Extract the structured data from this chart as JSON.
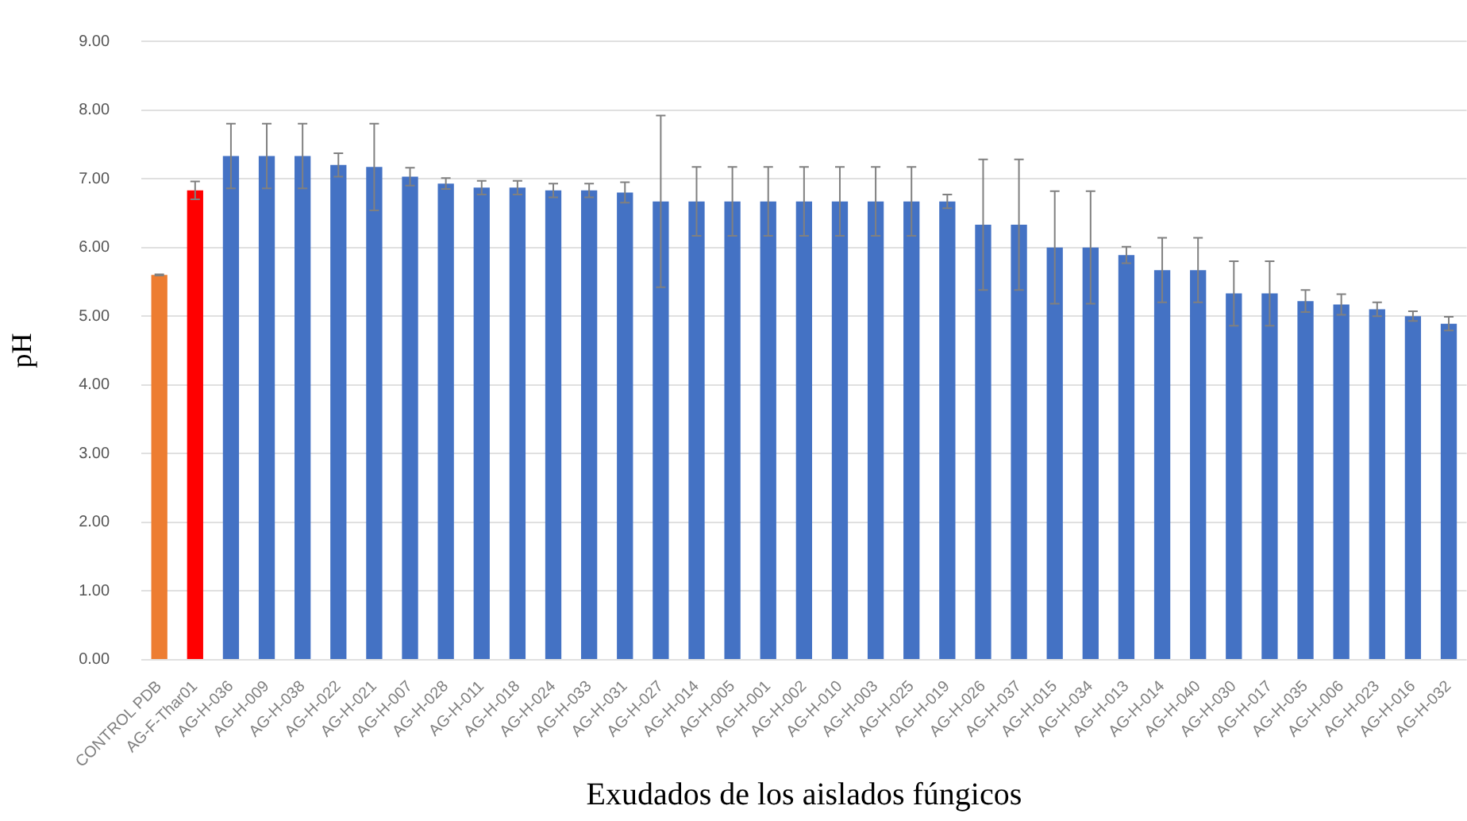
{
  "chart_data": {
    "type": "bar",
    "xlabel": "Exudados de los aislados fúngicos",
    "ylabel": "pH",
    "categories": [
      "CONTROL PDB",
      "AG-F-Thar01",
      "AG-H-036",
      "AG-H-009",
      "AG-H-038",
      "AG-H-022",
      "AG-H-021",
      "AG-H-007",
      "AG-H-028",
      "AG-H-011",
      "AG-H-018",
      "AG-H-024",
      "AG-H-033",
      "AG-H-031",
      "AG-H-027",
      "AG-H-014",
      "AG-H-005",
      "AG-H-001",
      "AG-H-002",
      "AG-H-010",
      "AG-H-003",
      "AG-H-025",
      "AG-H-019",
      "AG-H-026",
      "AG-H-037",
      "AG-H-015",
      "AG-H-034",
      "AG-H-013",
      "AG-H-014",
      "AG-H-040",
      "AG-H-030",
      "AG-H-017",
      "AG-H-035",
      "AG-H-006",
      "AG-H-023",
      "AG-H-016",
      "AG-H-032"
    ],
    "values": [
      5.6,
      6.83,
      7.33,
      7.33,
      7.33,
      7.2,
      7.17,
      7.03,
      6.93,
      6.87,
      6.87,
      6.83,
      6.83,
      6.8,
      6.67,
      6.67,
      6.67,
      6.67,
      6.67,
      6.67,
      6.67,
      6.67,
      6.67,
      6.33,
      6.33,
      6.0,
      6.0,
      5.89,
      5.67,
      5.67,
      5.33,
      5.33,
      5.22,
      5.17,
      5.1,
      5.0,
      4.89
    ],
    "errors": [
      0.01,
      0.13,
      0.47,
      0.47,
      0.47,
      0.17,
      0.63,
      0.13,
      0.08,
      0.1,
      0.1,
      0.1,
      0.1,
      0.15,
      1.25,
      0.5,
      0.5,
      0.5,
      0.5,
      0.5,
      0.5,
      0.5,
      0.1,
      0.95,
      0.95,
      0.82,
      0.82,
      0.12,
      0.47,
      0.47,
      0.47,
      0.47,
      0.16,
      0.15,
      0.1,
      0.07,
      0.1
    ],
    "colors": [
      "#ed7d31",
      "#ff0000",
      "#4472c4",
      "#4472c4",
      "#4472c4",
      "#4472c4",
      "#4472c4",
      "#4472c4",
      "#4472c4",
      "#4472c4",
      "#4472c4",
      "#4472c4",
      "#4472c4",
      "#4472c4",
      "#4472c4",
      "#4472c4",
      "#4472c4",
      "#4472c4",
      "#4472c4",
      "#4472c4",
      "#4472c4",
      "#4472c4",
      "#4472c4",
      "#4472c4",
      "#4472c4",
      "#4472c4",
      "#4472c4",
      "#4472c4",
      "#4472c4",
      "#4472c4",
      "#4472c4",
      "#4472c4",
      "#4472c4",
      "#4472c4",
      "#4472c4",
      "#4472c4",
      "#4472c4"
    ],
    "ylim": [
      0,
      9
    ],
    "yticks": [
      {
        "value": 0,
        "label": "0.00"
      },
      {
        "value": 1,
        "label": "1.00"
      },
      {
        "value": 2,
        "label": "2.00"
      },
      {
        "value": 3,
        "label": "3.00"
      },
      {
        "value": 4,
        "label": "4.00"
      },
      {
        "value": 5,
        "label": "5.00"
      },
      {
        "value": 6,
        "label": "6.00"
      },
      {
        "value": 7,
        "label": "7.00"
      },
      {
        "value": 8,
        "label": "8.00"
      },
      {
        "value": 9,
        "label": "9.00"
      }
    ],
    "grid": "y",
    "legend": false
  }
}
